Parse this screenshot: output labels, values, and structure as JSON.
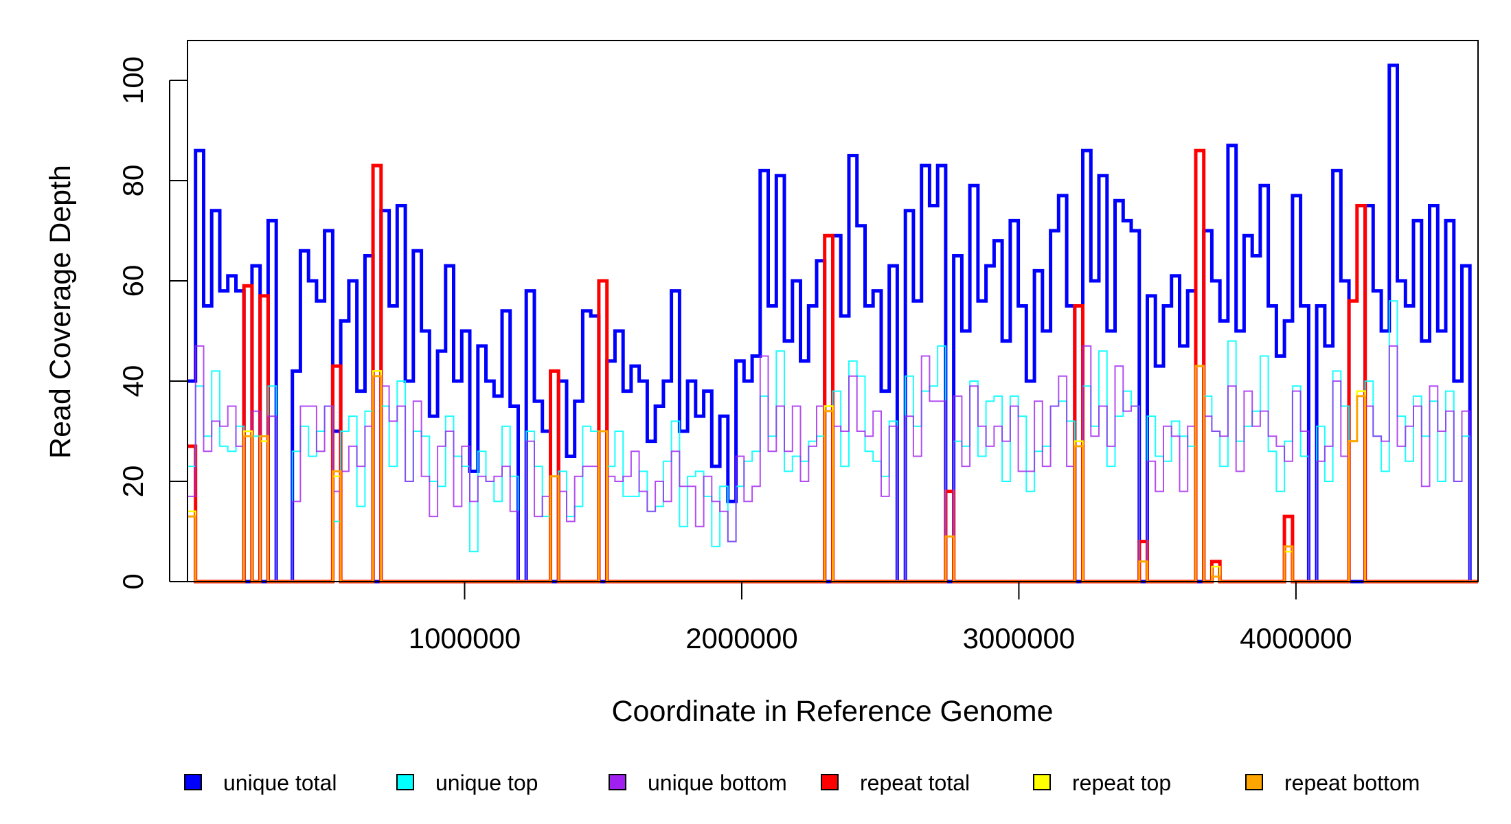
{
  "chart_data": {
    "type": "line",
    "style": "step",
    "title": "",
    "xlabel": "Coordinate in Reference Genome",
    "ylabel": "Read Coverage Depth",
    "xlim": [
      0,
      4657000
    ],
    "ylim": [
      0,
      100
    ],
    "bin_width": 29106,
    "xticks": [
      {
        "value": 1000000,
        "label": "1000000"
      },
      {
        "value": 2000000,
        "label": "2000000"
      },
      {
        "value": 3000000,
        "label": "3000000"
      },
      {
        "value": 4000000,
        "label": "4000000"
      }
    ],
    "yticks": [
      {
        "value": 0,
        "label": "0"
      },
      {
        "value": 20,
        "label": "20"
      },
      {
        "value": 40,
        "label": "40"
      },
      {
        "value": 60,
        "label": "60"
      },
      {
        "value": 80,
        "label": "80"
      },
      {
        "value": 100,
        "label": "100"
      }
    ],
    "grid": false,
    "legend_position": "bottom",
    "series": [
      {
        "name": "unique total",
        "color": "#0000FF",
        "values": [
          40,
          86,
          55,
          74,
          58,
          61,
          58,
          0,
          63,
          0,
          72,
          0,
          0,
          42,
          66,
          60,
          56,
          70,
          30,
          52,
          60,
          38,
          65,
          0,
          74,
          55,
          75,
          40,
          66,
          50,
          33,
          46,
          63,
          40,
          50,
          22,
          47,
          40,
          37,
          54,
          35,
          0,
          58,
          36,
          30,
          0,
          40,
          25,
          36,
          54,
          53,
          0,
          44,
          50,
          38,
          43,
          40,
          28,
          35,
          40,
          58,
          30,
          40,
          33,
          38,
          23,
          33,
          16,
          44,
          40,
          45,
          82,
          55,
          81,
          48,
          60,
          44,
          55,
          64,
          0,
          69,
          53,
          85,
          71,
          55,
          58,
          38,
          63,
          0,
          74,
          56,
          83,
          75,
          83,
          0,
          65,
          50,
          79,
          56,
          63,
          68,
          48,
          72,
          55,
          40,
          62,
          50,
          70,
          77,
          55,
          0,
          86,
          60,
          81,
          50,
          76,
          72,
          70,
          0,
          57,
          43,
          55,
          61,
          47,
          58,
          0,
          70,
          60,
          52,
          87,
          50,
          69,
          65,
          79,
          55,
          45,
          52,
          77,
          55,
          0,
          55,
          47,
          82,
          60,
          0,
          0,
          75,
          58,
          50,
          103,
          60,
          55,
          72,
          48,
          75,
          50,
          72,
          40,
          63,
          0
        ]
      },
      {
        "name": "unique top",
        "color": "#00FFFF",
        "values": [
          23,
          39,
          29,
          42,
          27,
          26,
          31,
          0,
          29,
          0,
          39,
          0,
          0,
          26,
          31,
          25,
          30,
          35,
          12,
          30,
          33,
          15,
          34,
          0,
          35,
          23,
          40,
          20,
          30,
          29,
          20,
          19,
          33,
          25,
          23,
          6,
          26,
          20,
          16,
          31,
          21,
          0,
          30,
          23,
          13,
          0,
          22,
          13,
          15,
          31,
          30,
          0,
          23,
          30,
          17,
          17,
          22,
          14,
          15,
          24,
          32,
          11,
          21,
          22,
          17,
          7,
          19,
          8,
          19,
          24,
          26,
          37,
          29,
          46,
          22,
          25,
          24,
          28,
          29,
          0,
          38,
          23,
          44,
          41,
          26,
          24,
          21,
          32,
          0,
          41,
          31,
          38,
          39,
          47,
          0,
          28,
          27,
          40,
          25,
          36,
          37,
          20,
          37,
          33,
          18,
          26,
          27,
          35,
          36,
          32,
          0,
          39,
          31,
          46,
          23,
          33,
          38,
          35,
          0,
          33,
          25,
          24,
          32,
          29,
          27,
          0,
          37,
          30,
          23,
          48,
          28,
          31,
          34,
          45,
          26,
          18,
          28,
          39,
          25,
          0,
          31,
          20,
          42,
          35,
          0,
          0,
          40,
          29,
          22,
          56,
          33,
          24,
          37,
          29,
          36,
          20,
          38,
          20,
          29,
          0
        ]
      },
      {
        "name": "unique bottom",
        "color": "#A020F0",
        "values": [
          17,
          47,
          26,
          32,
          31,
          35,
          27,
          0,
          34,
          0,
          33,
          0,
          0,
          16,
          35,
          35,
          26,
          35,
          18,
          22,
          27,
          23,
          31,
          0,
          39,
          32,
          35,
          20,
          36,
          21,
          13,
          27,
          30,
          15,
          27,
          16,
          21,
          20,
          21,
          23,
          14,
          0,
          28,
          13,
          17,
          0,
          18,
          12,
          21,
          23,
          23,
          0,
          21,
          20,
          21,
          26,
          18,
          14,
          20,
          16,
          26,
          19,
          19,
          11,
          21,
          16,
          14,
          8,
          25,
          16,
          19,
          45,
          26,
          35,
          26,
          35,
          20,
          27,
          35,
          0,
          31,
          30,
          41,
          30,
          29,
          34,
          17,
          31,
          0,
          33,
          25,
          45,
          36,
          36,
          0,
          37,
          23,
          39,
          31,
          27,
          31,
          28,
          35,
          22,
          22,
          36,
          23,
          35,
          41,
          23,
          0,
          47,
          29,
          35,
          27,
          43,
          34,
          35,
          0,
          24,
          18,
          31,
          29,
          18,
          31,
          0,
          33,
          30,
          29,
          39,
          22,
          38,
          31,
          34,
          29,
          27,
          24,
          38,
          30,
          0,
          24,
          27,
          40,
          25,
          0,
          0,
          35,
          29,
          28,
          47,
          27,
          31,
          35,
          19,
          39,
          30,
          34,
          20,
          34,
          0
        ]
      },
      {
        "name": "repeat total",
        "color": "#FF0000",
        "nonzero_bins": {
          "0": 27,
          "7": 59,
          "9": 57,
          "18": 43,
          "23": 83,
          "45": 42,
          "51": 60,
          "79": 69,
          "94": 18,
          "110": 55,
          "118": 8,
          "125": 86,
          "127": 4,
          "136": 13,
          "144": 56,
          "145": 75
        }
      },
      {
        "name": "repeat top",
        "color": "#FFFF00",
        "nonzero_bins": {
          "0": 14,
          "7": 30,
          "9": 28,
          "18": 21,
          "23": 42,
          "45": 21,
          "51": 30,
          "79": 35,
          "94": 9,
          "110": 28,
          "118": 4,
          "125": 43,
          "127": 3,
          "136": 6,
          "144": 28,
          "145": 38
        }
      },
      {
        "name": "repeat bottom",
        "color": "#FFA500",
        "nonzero_bins": {
          "0": 13,
          "7": 29,
          "9": 29,
          "18": 22,
          "23": 41,
          "45": 21,
          "51": 30,
          "79": 34,
          "94": 9,
          "110": 27,
          "118": 4,
          "125": 43,
          "127": 1,
          "136": 7,
          "144": 28,
          "145": 37
        }
      }
    ]
  }
}
